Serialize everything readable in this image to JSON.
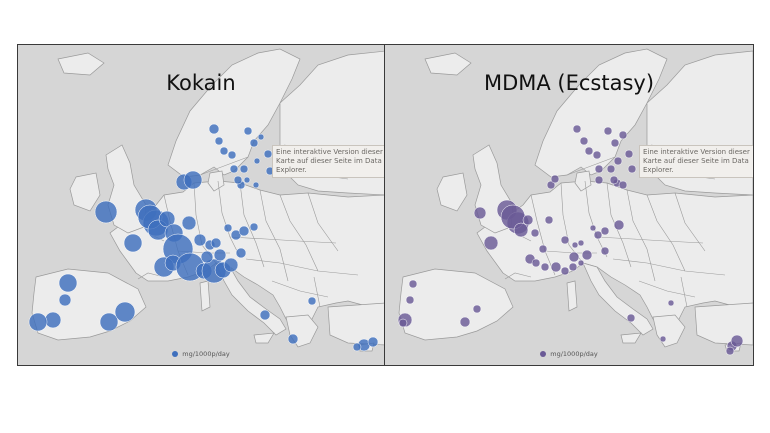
{
  "colors": {
    "kokain": "#3e6fbd",
    "mdma": "#6a5a96",
    "land": "#ececec",
    "sea": "#d6d6d6",
    "border": "#9a9a9a"
  },
  "panels": [
    {
      "id": "kokain",
      "title": "Kokain",
      "tooltip": "Eine interaktive Version dieser Karte auf dieser Seite im Data Explorer.",
      "legend_label": "mg/1000p/day"
    },
    {
      "id": "mdma",
      "title": "MDMA (Ecstasy)",
      "tooltip": "Eine interaktive Version dieser Karte auf dieser Seite im Data Explorer.",
      "legend_label": "mg/1000p/day"
    }
  ]
}
